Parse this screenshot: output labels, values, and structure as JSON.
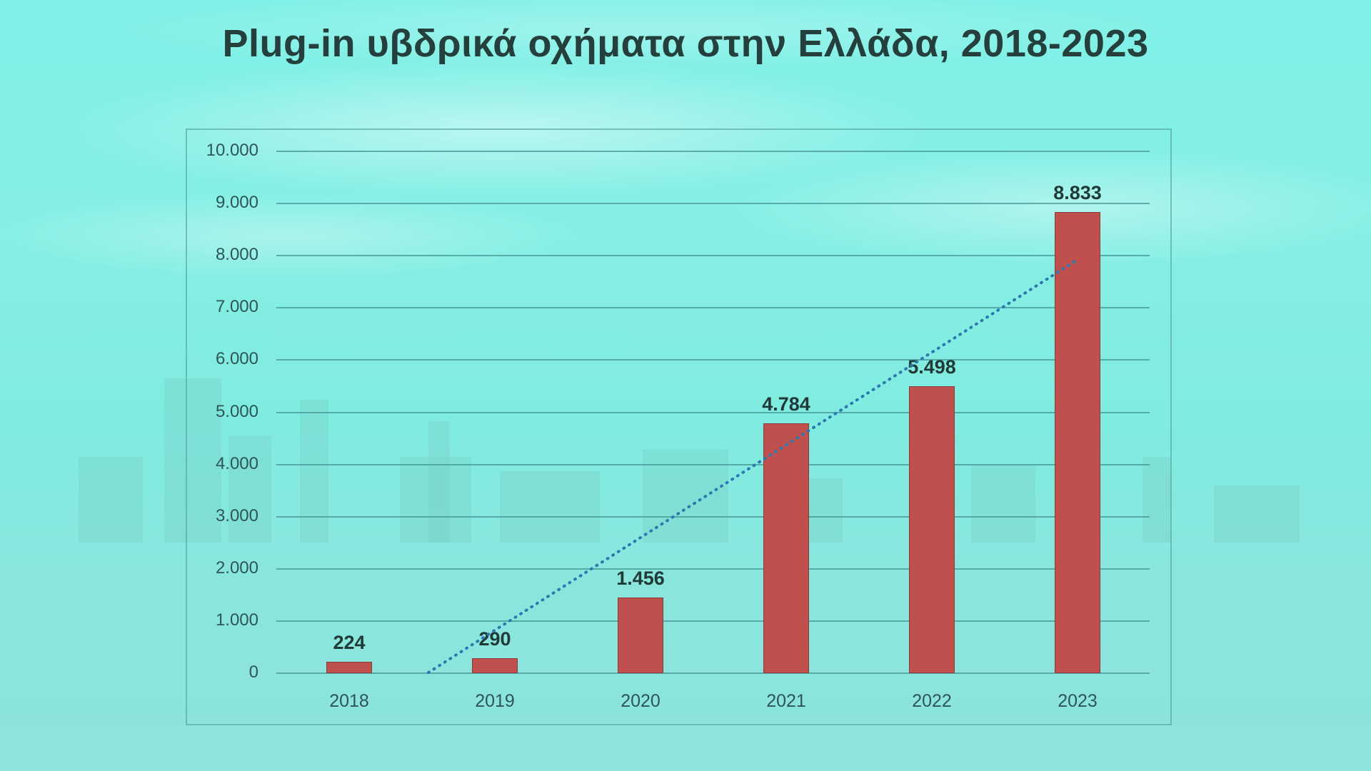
{
  "title": "Plug-in υβδρικά οχήματα στην Ελλάδα, 2018-2023",
  "colors": {
    "bar": "#c0504d",
    "trendline": "#2e78b0",
    "title": "#243f3c",
    "background": "#86efe4"
  },
  "y_ticks": [
    "0",
    "1.000",
    "2.000",
    "3.000",
    "4.000",
    "5.000",
    "6.000",
    "7.000",
    "8.000",
    "9.000",
    "10.000"
  ],
  "x_ticks": [
    "2018",
    "2019",
    "2020",
    "2021",
    "2022",
    "2023"
  ],
  "data_labels": [
    "224",
    "290",
    "1.456",
    "4.784",
    "5.498",
    "8.833"
  ],
  "chart_data": {
    "type": "bar",
    "title": "Plug-in υβδρικά οχήματα στην Ελλάδα, 2018-2023",
    "categories": [
      "2018",
      "2019",
      "2020",
      "2021",
      "2022",
      "2023"
    ],
    "values": [
      224,
      290,
      1456,
      4784,
      5498,
      8833
    ],
    "data_labels": [
      "224",
      "290",
      "1.456",
      "4.784",
      "5.498",
      "8.833"
    ],
    "xlabel": "",
    "ylabel": "",
    "ylim": [
      0,
      10000
    ],
    "yticks": [
      0,
      1000,
      2000,
      3000,
      4000,
      5000,
      6000,
      7000,
      8000,
      9000,
      10000
    ],
    "grid": true,
    "legend": null,
    "annotations": [
      "dotted linear trendline"
    ],
    "trendline": {
      "type": "linear",
      "style": "dotted",
      "start": {
        "x": "2018.5",
        "y": 0
      },
      "end": {
        "x": "2023",
        "y": 7900
      }
    }
  }
}
